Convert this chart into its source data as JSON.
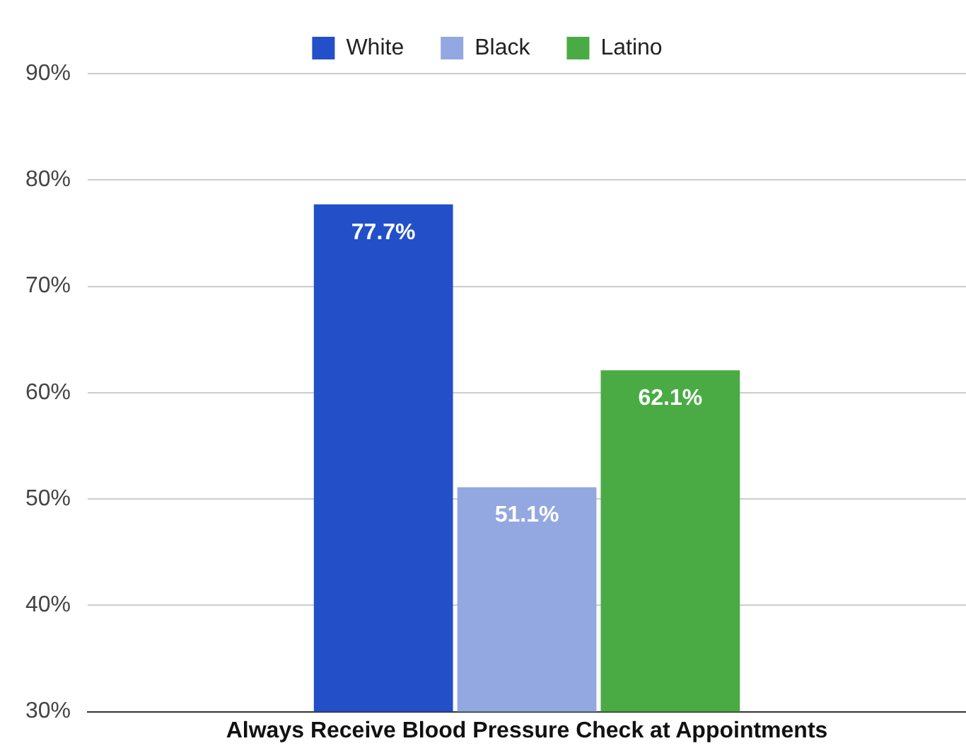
{
  "chart_data": {
    "type": "bar",
    "categories": [
      "Always Receive Blood Pressure Check at Appointments"
    ],
    "series": [
      {
        "name": "White",
        "color": "#2350c8",
        "values": [
          77.7
        ],
        "value_labels": [
          "77.7%"
        ]
      },
      {
        "name": "Black",
        "color": "#93a8e0",
        "values": [
          51.1
        ],
        "value_labels": [
          "51.1%"
        ]
      },
      {
        "name": "Latino",
        "color": "#4aab45",
        "values": [
          62.1
        ],
        "value_labels": [
          "62.1%"
        ]
      }
    ],
    "ylim": [
      30,
      90
    ],
    "yticks": [
      {
        "value": 30,
        "label": "30%"
      },
      {
        "value": 40,
        "label": "40%"
      },
      {
        "value": 50,
        "label": "50%"
      },
      {
        "value": 60,
        "label": "60%"
      },
      {
        "value": 70,
        "label": "70%"
      },
      {
        "value": 80,
        "label": "80%"
      },
      {
        "value": 90,
        "label": "90%"
      }
    ],
    "grid": "y",
    "legend": "top"
  }
}
